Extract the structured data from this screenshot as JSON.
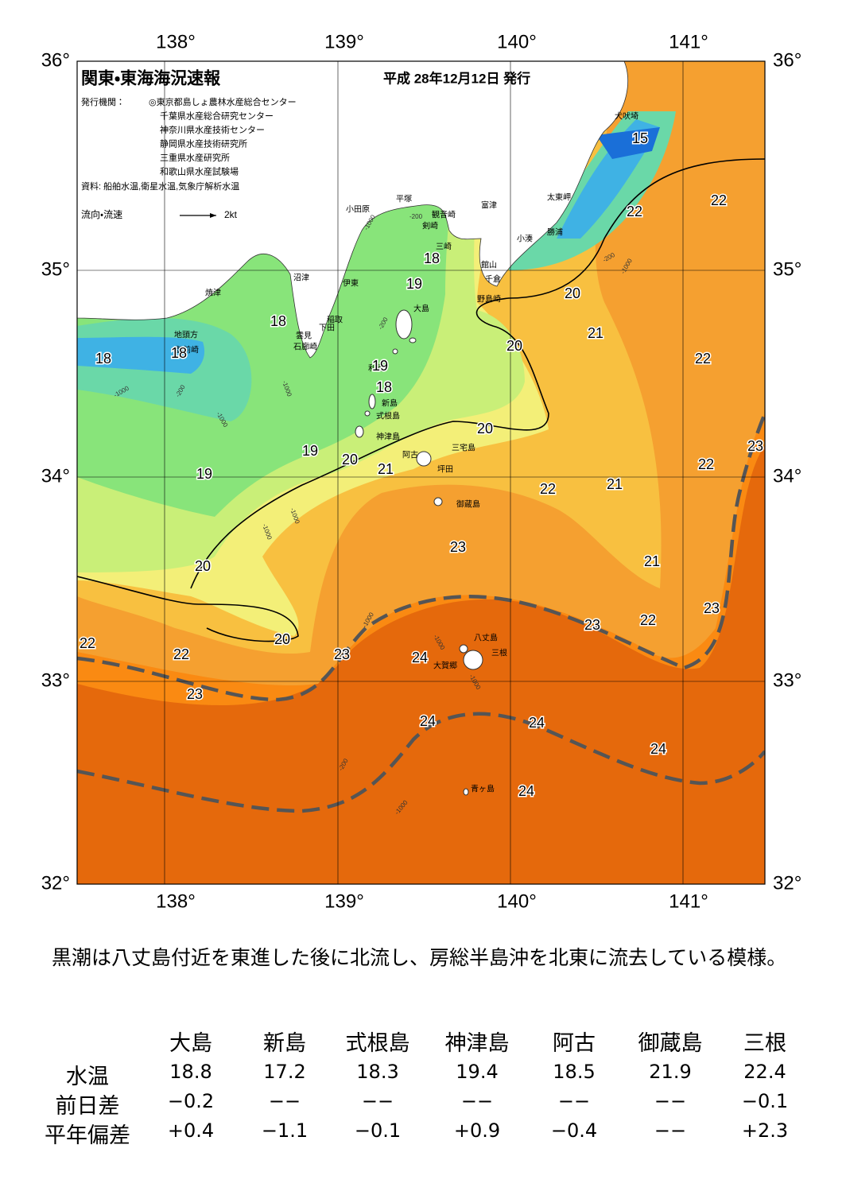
{
  "header": {
    "title": "関東・東海海況速報",
    "date": "平成 28年12月12日 発行",
    "issuer_label": "発行機関：",
    "issuers": [
      "◎東京都島しょ農林水産総合センター",
      "千葉県水産総合研究センター",
      "神奈川県水産技術センター",
      "静岡県水産技術研究所",
      "三重県水産研究所",
      "和歌山県水産試験場"
    ],
    "source": "資料: 船舶水温,衛星水温,気象庁解析水温",
    "flow_label": "流向・流速",
    "flow_scale": "2kt"
  },
  "map": {
    "lon_labels": [
      "138°",
      "139°",
      "140°",
      "141°"
    ],
    "lat_labels": [
      "36°",
      "35°",
      "34°",
      "33°",
      "32°"
    ],
    "places": [
      "犬吠埼",
      "太東岬",
      "勝浦",
      "小湊",
      "館山",
      "千倉",
      "野島崎",
      "富津",
      "観音崎",
      "剣崎",
      "三崎",
      "平塚",
      "小田原",
      "伊東",
      "沼津",
      "焼津",
      "稲取",
      "下田",
      "雲見",
      "石廊崎",
      "地頭方",
      "御前崎",
      "大島",
      "利島",
      "新島",
      "式根島",
      "神津島",
      "三宅島",
      "阿古",
      "坪田",
      "御蔵島",
      "八丈島",
      "三根",
      "大賀郷",
      "青ヶ島"
    ],
    "isotherm_labels": [
      18,
      18,
      18,
      18,
      19,
      19,
      18,
      15,
      22,
      22,
      20,
      21,
      20,
      22,
      20,
      19,
      20,
      21,
      19,
      22,
      21,
      22,
      23,
      23,
      20,
      21,
      23,
      22,
      23,
      22,
      20,
      22,
      23,
      24,
      23,
      24,
      24,
      24,
      24
    ],
    "depth_labels": [
      -1000,
      -200,
      -1000,
      -200,
      -1000,
      -200,
      -1000,
      -1000,
      -1000,
      -200,
      -1000,
      -1000,
      -1000,
      -200,
      -1000,
      -1000
    ]
  },
  "summary": "黒潮は八丈島付近を東進した後に北流し、房総半島沖を北東に流去している模様。",
  "table": {
    "columns": [
      "大島",
      "新島",
      "式根島",
      "神津島",
      "阿古",
      "御蔵島",
      "三根"
    ],
    "rows": [
      {
        "label": "水温",
        "cells": [
          "18.8",
          "17.2",
          "18.3",
          "19.4",
          "18.5",
          "21.9",
          "22.4"
        ]
      },
      {
        "label": "前日差",
        "cells": [
          "−0.2",
          "−−",
          "−−",
          "−−",
          "−−",
          "−−",
          "−0.1"
        ]
      },
      {
        "label": "平年偏差",
        "cells": [
          "+0.4",
          "−1.1",
          "−0.1",
          "+0.9",
          "−0.4",
          "−−",
          "+2.3"
        ]
      }
    ]
  }
}
